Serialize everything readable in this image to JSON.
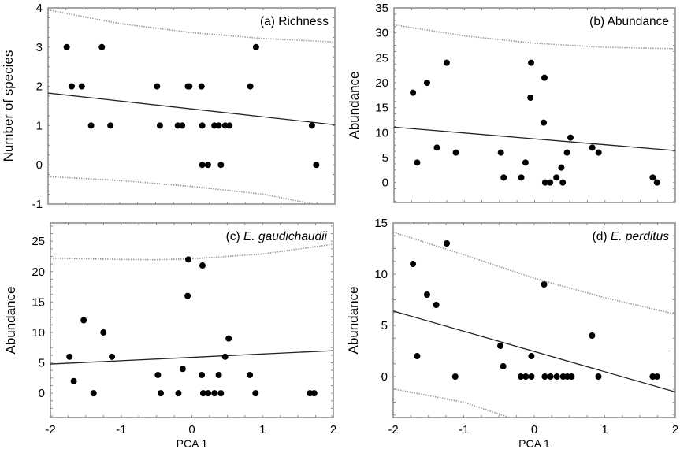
{
  "chart_data": [
    {
      "type": "scatter",
      "title_prefix": "(a) ",
      "title_main": "Richness",
      "title_italic": false,
      "xlabel": "",
      "ylabel": "Number of species",
      "xlim": [
        -2,
        2
      ],
      "ylim": [
        -1,
        4
      ],
      "xticks": [],
      "yticks": [
        -1,
        0,
        1,
        2,
        3,
        4
      ],
      "points": [
        [
          -1.74,
          3
        ],
        [
          -1.25,
          3
        ],
        [
          0.9,
          3
        ],
        [
          -1.67,
          2
        ],
        [
          -1.53,
          2
        ],
        [
          -0.48,
          2
        ],
        [
          -0.05,
          2
        ],
        [
          -0.03,
          2
        ],
        [
          0.14,
          2
        ],
        [
          0.82,
          2
        ],
        [
          -1.4,
          1
        ],
        [
          -1.13,
          1
        ],
        [
          -0.44,
          1
        ],
        [
          -0.19,
          1
        ],
        [
          -0.13,
          1
        ],
        [
          0.15,
          1
        ],
        [
          0.32,
          1
        ],
        [
          0.38,
          1
        ],
        [
          0.47,
          1
        ],
        [
          0.53,
          1
        ],
        [
          1.68,
          1
        ],
        [
          0.15,
          0
        ],
        [
          0.23,
          0
        ],
        [
          0.41,
          0
        ],
        [
          1.74,
          0
        ]
      ],
      "fit_line": [
        [
          -2,
          1.83
        ],
        [
          2,
          1.02
        ]
      ],
      "ci_upper": [
        [
          -2,
          3.95
        ],
        [
          -1,
          3.6
        ],
        [
          0,
          3.37
        ],
        [
          1,
          3.22
        ],
        [
          2,
          3.13
        ]
      ],
      "ci_lower": [
        [
          -2,
          -0.3
        ],
        [
          -1,
          -0.4
        ],
        [
          0,
          -0.55
        ],
        [
          1,
          -0.75
        ],
        [
          1.7,
          -1.0
        ]
      ]
    },
    {
      "type": "scatter",
      "title_prefix": "(b) ",
      "title_main": "Abundance",
      "title_italic": false,
      "xlabel": "",
      "ylabel": "Abundance",
      "xlim": [
        -2,
        2
      ],
      "ylim": [
        -4,
        35
      ],
      "xticks": [],
      "yticks": [
        0,
        5,
        10,
        15,
        20,
        25,
        30,
        35
      ],
      "points": [
        [
          -1.73,
          18
        ],
        [
          -1.67,
          4
        ],
        [
          -1.53,
          20
        ],
        [
          -1.39,
          7
        ],
        [
          -1.25,
          24
        ],
        [
          -1.12,
          6
        ],
        [
          -0.48,
          6
        ],
        [
          -0.44,
          1
        ],
        [
          -0.19,
          1
        ],
        [
          -0.13,
          4
        ],
        [
          -0.06,
          17
        ],
        [
          -0.05,
          24
        ],
        [
          0.13,
          12
        ],
        [
          0.14,
          21
        ],
        [
          0.15,
          0
        ],
        [
          0.22,
          0
        ],
        [
          0.31,
          1
        ],
        [
          0.38,
          3
        ],
        [
          0.4,
          0
        ],
        [
          0.46,
          6
        ],
        [
          0.51,
          9
        ],
        [
          0.82,
          7
        ],
        [
          0.91,
          6
        ],
        [
          1.68,
          1
        ],
        [
          1.74,
          0
        ]
      ],
      "fit_line": [
        [
          -2,
          11.1
        ],
        [
          2,
          6.4
        ]
      ],
      "ci_upper": [
        [
          -2,
          31.6
        ],
        [
          -1,
          29.4
        ],
        [
          0,
          27.9
        ],
        [
          1,
          27.1
        ],
        [
          2,
          26.8
        ]
      ],
      "ci_lower": []
    },
    {
      "type": "scatter",
      "title_prefix": "(c) ",
      "title_main": "E. gaudichaudii",
      "title_italic": true,
      "xlabel": "PCA 1",
      "ylabel": "Abundance",
      "xlim": [
        -2,
        2
      ],
      "ylim": [
        -4,
        28
      ],
      "xticks": [
        -2,
        -1,
        0,
        1,
        2
      ],
      "yticks": [
        0,
        5,
        10,
        15,
        20,
        25
      ],
      "points": [
        [
          -1.73,
          6
        ],
        [
          -1.67,
          2
        ],
        [
          -1.53,
          12
        ],
        [
          -1.39,
          0
        ],
        [
          -1.25,
          10
        ],
        [
          -1.13,
          6
        ],
        [
          -0.48,
          3
        ],
        [
          -0.44,
          0
        ],
        [
          -0.19,
          0
        ],
        [
          -0.13,
          4
        ],
        [
          -0.06,
          16
        ],
        [
          -0.05,
          22
        ],
        [
          0.14,
          3
        ],
        [
          0.15,
          21
        ],
        [
          0.16,
          0
        ],
        [
          0.23,
          0
        ],
        [
          0.32,
          0
        ],
        [
          0.38,
          3
        ],
        [
          0.41,
          0
        ],
        [
          0.47,
          6
        ],
        [
          0.52,
          9
        ],
        [
          0.82,
          3
        ],
        [
          0.9,
          0
        ],
        [
          1.67,
          0
        ],
        [
          1.73,
          0
        ]
      ],
      "fit_line": [
        [
          -2,
          4.8
        ],
        [
          2,
          7.0
        ]
      ],
      "ci_upper": [
        [
          -2,
          22.2
        ],
        [
          -1,
          22.0
        ],
        [
          -0.5,
          21.95
        ],
        [
          0,
          22.1
        ],
        [
          1,
          22.9
        ],
        [
          2,
          24.5
        ]
      ],
      "ci_lower": []
    },
    {
      "type": "scatter",
      "title_prefix": "(d) ",
      "title_main": "E. perditus",
      "title_italic": true,
      "xlabel": "PCA 1",
      "ylabel": "Abundance",
      "xlim": [
        -2,
        2
      ],
      "ylim": [
        -4,
        15
      ],
      "xticks": [
        -2,
        -1,
        0,
        1,
        2
      ],
      "yticks": [
        0,
        5,
        10,
        15
      ],
      "points": [
        [
          -1.72,
          11
        ],
        [
          -1.66,
          2
        ],
        [
          -1.52,
          8
        ],
        [
          -1.39,
          7
        ],
        [
          -1.24,
          13
        ],
        [
          -1.12,
          0
        ],
        [
          -0.48,
          3
        ],
        [
          -0.44,
          1
        ],
        [
          -0.19,
          0
        ],
        [
          -0.12,
          0
        ],
        [
          -0.04,
          0
        ],
        [
          -0.04,
          2
        ],
        [
          0.14,
          9
        ],
        [
          0.15,
          0
        ],
        [
          0.23,
          0
        ],
        [
          0.32,
          0
        ],
        [
          0.41,
          0
        ],
        [
          0.47,
          0
        ],
        [
          0.53,
          0
        ],
        [
          0.82,
          4
        ],
        [
          0.91,
          0
        ],
        [
          1.68,
          0
        ],
        [
          1.74,
          0
        ]
      ],
      "fit_line": [
        [
          -2,
          6.4
        ],
        [
          2,
          -1.5
        ]
      ],
      "ci_upper": [
        [
          -2,
          14.1
        ],
        [
          -1,
          11.9
        ],
        [
          0,
          9.6
        ],
        [
          1,
          7.7
        ],
        [
          2,
          6.1
        ]
      ],
      "ci_lower": [
        [
          -2,
          -1.2
        ],
        [
          -1,
          -2.5
        ],
        [
          -0.35,
          -4.0
        ]
      ]
    }
  ],
  "colors": {
    "points": "#000000",
    "fit_line": "#222222",
    "ci_lines": "#999999",
    "frame": "#888888"
  }
}
